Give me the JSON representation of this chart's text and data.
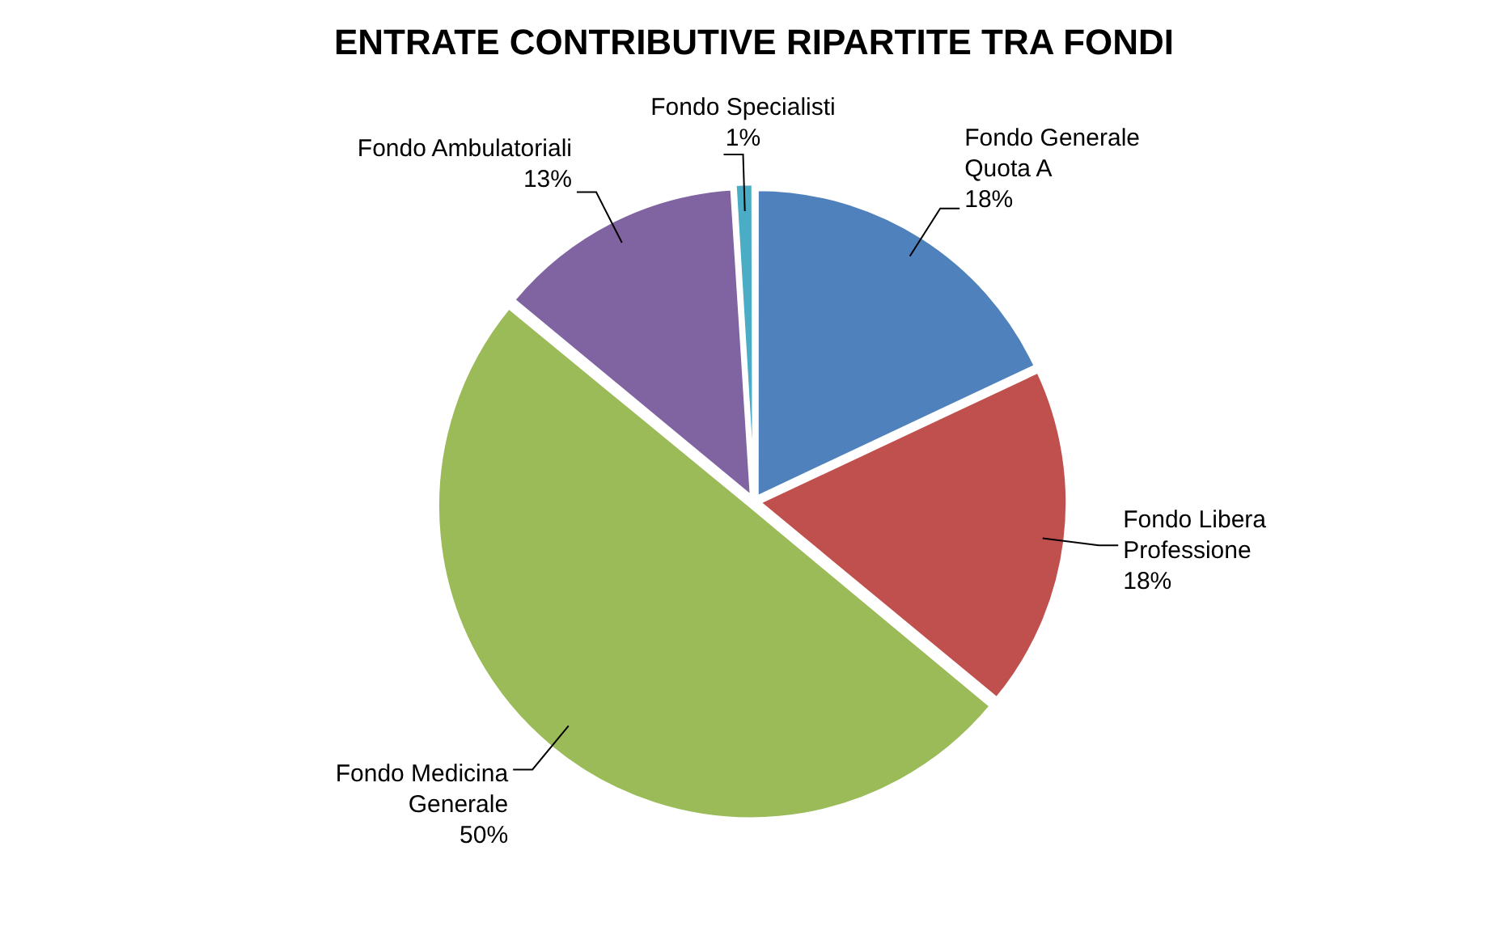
{
  "chart_data": {
    "type": "pie",
    "title": "ENTRATE CONTRIBUTIVE RIPARTITE TRA FONDI",
    "categories": [
      "Fondo Generale Quota A",
      "Fondo Libera Professione",
      "Fondo Medicina Generale",
      "Fondo Ambulatoriali",
      "Fondo Specialisti"
    ],
    "values": [
      18,
      18,
      50,
      13,
      1
    ],
    "value_labels": [
      "18%",
      "18%",
      "50%",
      "13%",
      "1%"
    ],
    "colors": [
      "#4f81bd",
      "#c0504d",
      "#9bbb59",
      "#8064a2",
      "#4bacc6"
    ],
    "legend": false
  }
}
